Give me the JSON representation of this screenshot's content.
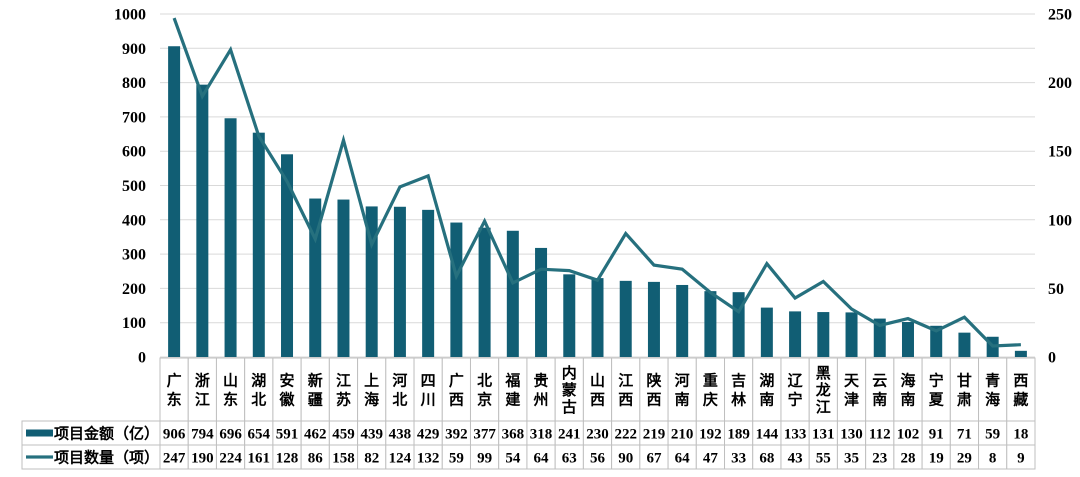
{
  "chart_data": {
    "type": "bar",
    "subtype": "combo-bar-line-with-data-table",
    "title": "",
    "xlabel": "",
    "ylabel": "",
    "categories": [
      "广东",
      "浙江",
      "山东",
      "湖北",
      "安徽",
      "新疆",
      "江苏",
      "上海",
      "河北",
      "四川",
      "广西",
      "北京",
      "福建",
      "贵州",
      "内蒙古",
      "山西",
      "江西",
      "陕西",
      "河南",
      "重庆",
      "吉林",
      "湖南",
      "辽宁",
      "黑龙江",
      "天津",
      "云南",
      "海南",
      "宁夏",
      "甘肃",
      "青海",
      "西藏"
    ],
    "series": [
      {
        "name": "项目金额（亿）",
        "type": "bar",
        "axis": "left",
        "color": "#115e74",
        "values": [
          906,
          794,
          696,
          654,
          591,
          462,
          459,
          439,
          438,
          429,
          392,
          377,
          368,
          318,
          241,
          230,
          222,
          219,
          210,
          192,
          189,
          144,
          133,
          131,
          130,
          112,
          102,
          91,
          71,
          59,
          18
        ]
      },
      {
        "name": "项目数量（项）",
        "type": "line",
        "axis": "right",
        "color": "#26707e",
        "values": [
          247,
          190,
          224,
          161,
          128,
          86,
          158,
          82,
          124,
          132,
          59,
          99,
          54,
          64,
          63,
          56,
          90,
          67,
          64,
          47,
          33,
          68,
          43,
          55,
          35,
          23,
          28,
          19,
          29,
          8,
          9
        ]
      }
    ],
    "left_axis": {
      "min": 0,
      "max": 1000,
      "step": 100,
      "ticks": [
        0,
        100,
        200,
        300,
        400,
        500,
        600,
        700,
        800,
        900,
        1000
      ]
    },
    "right_axis": {
      "min": 0,
      "max": 250,
      "step": 50,
      "ticks": [
        0,
        50,
        100,
        150,
        200,
        250
      ]
    },
    "grid": true,
    "legend_position": "data-table-left-column"
  },
  "colors": {
    "bar": "#115e74",
    "line": "#26707e",
    "gridline": "#d9d9d9",
    "table_border": "#bfbfbf",
    "text": "#000000",
    "background": "#ffffff"
  }
}
